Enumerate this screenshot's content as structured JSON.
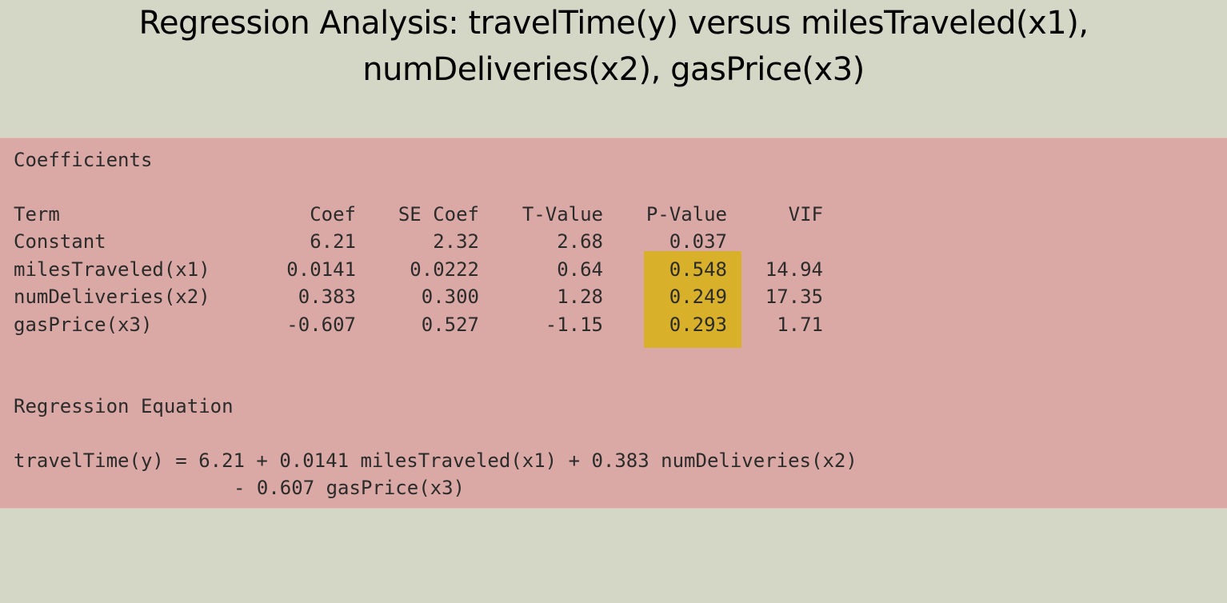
{
  "title": {
    "line1": "Regression Analysis: travelTime(y) versus milesTraveled(x1),",
    "line2": "numDeliveries(x2), gasPrice(x3)"
  },
  "coefficients": {
    "heading": "Coefficients",
    "columns": [
      "Term",
      "Coef",
      "SE Coef",
      "T-Value",
      "P-Value",
      "VIF"
    ],
    "rows": [
      {
        "term": "Constant",
        "coef": "6.21",
        "se": "2.32",
        "t": "2.68",
        "p": "0.037",
        "vif": ""
      },
      {
        "term": "milesTraveled(x1)",
        "coef": "0.0141",
        "se": "0.0222",
        "t": "0.64",
        "p": "0.548",
        "vif": "14.94"
      },
      {
        "term": "numDeliveries(x2)",
        "coef": "0.383",
        "se": "0.300",
        "t": "1.28",
        "p": "0.249",
        "vif": "17.35"
      },
      {
        "term": "gasPrice(x3)",
        "coef": "-0.607",
        "se": "0.527",
        "t": "-1.15",
        "p": "0.293",
        "vif": "1.71"
      }
    ],
    "highlight_color": "#d8b02a"
  },
  "equation": {
    "heading": "Regression Equation",
    "line1": "travelTime(y) = 6.21 + 0.0141 milesTraveled(x1) + 0.383 numDeliveries(x2)",
    "line2": "- 0.607 gasPrice(x3)"
  },
  "colors": {
    "background": "#d4d7c5",
    "panel": "#daa9a5",
    "highlight": "#d8b02a"
  }
}
